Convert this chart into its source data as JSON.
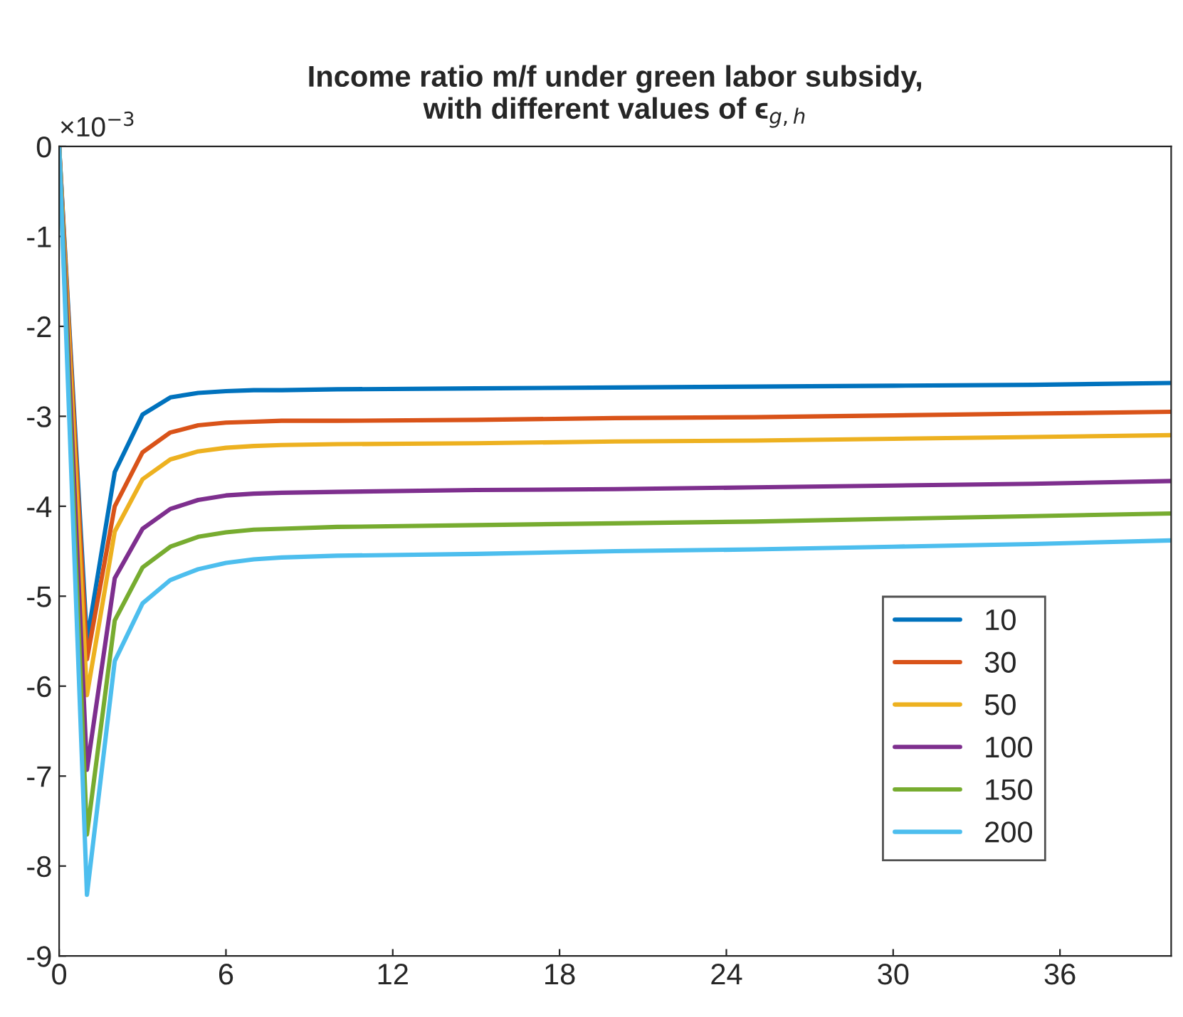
{
  "chart_data": {
    "type": "line",
    "title": "Income ratio m/f under green labor subsidy,\nwith different values of ϵ$_{g,h}$",
    "annotations": [
      "×10$^{−3}$"
    ],
    "x": [
      0,
      1,
      2,
      3,
      4,
      5,
      6,
      7,
      8,
      10,
      15,
      20,
      25,
      30,
      35,
      40
    ],
    "series": [
      {
        "name": "10",
        "color": "#0072bd",
        "values": [
          0,
          -5.5,
          -3.62,
          -2.98,
          -2.79,
          -2.74,
          -2.72,
          -2.71,
          -2.71,
          -2.7,
          -2.69,
          -2.68,
          -2.67,
          -2.66,
          -2.65,
          -2.63
        ]
      },
      {
        "name": "30",
        "color": "#d95319",
        "values": [
          0,
          -5.7,
          -4.0,
          -3.4,
          -3.18,
          -3.1,
          -3.07,
          -3.06,
          -3.05,
          -3.05,
          -3.04,
          -3.02,
          -3.01,
          -2.99,
          -2.97,
          -2.95
        ]
      },
      {
        "name": "50",
        "color": "#edb120",
        "values": [
          0,
          -6.1,
          -4.28,
          -3.7,
          -3.48,
          -3.39,
          -3.35,
          -3.33,
          -3.32,
          -3.31,
          -3.3,
          -3.28,
          -3.27,
          -3.25,
          -3.23,
          -3.21
        ]
      },
      {
        "name": "100",
        "color": "#7e2f8e",
        "values": [
          0,
          -6.93,
          -4.8,
          -4.25,
          -4.03,
          -3.93,
          -3.88,
          -3.86,
          -3.85,
          -3.84,
          -3.82,
          -3.81,
          -3.79,
          -3.77,
          -3.75,
          -3.72
        ]
      },
      {
        "name": "150",
        "color": "#77ac30",
        "values": [
          0,
          -7.65,
          -5.27,
          -4.68,
          -4.45,
          -4.34,
          -4.29,
          -4.26,
          -4.25,
          -4.23,
          -4.21,
          -4.19,
          -4.17,
          -4.14,
          -4.11,
          -4.08
        ]
      },
      {
        "name": "200",
        "color": "#4dbeee",
        "values": [
          0,
          -8.32,
          -5.72,
          -5.08,
          -4.82,
          -4.7,
          -4.63,
          -4.59,
          -4.57,
          -4.55,
          -4.53,
          -4.5,
          -4.48,
          -4.45,
          -4.42,
          -4.38
        ]
      }
    ],
    "xlim": [
      0,
      40
    ],
    "xticks": [
      0,
      6,
      12,
      18,
      24,
      30,
      36
    ],
    "ylim": [
      -9,
      0
    ],
    "yticks": [
      -9,
      -8,
      -7,
      -6,
      -5,
      -4,
      -3,
      -2,
      -1,
      0
    ],
    "grid": false,
    "legend": "bottom right",
    "marker": "none",
    "line_style": "solid"
  }
}
